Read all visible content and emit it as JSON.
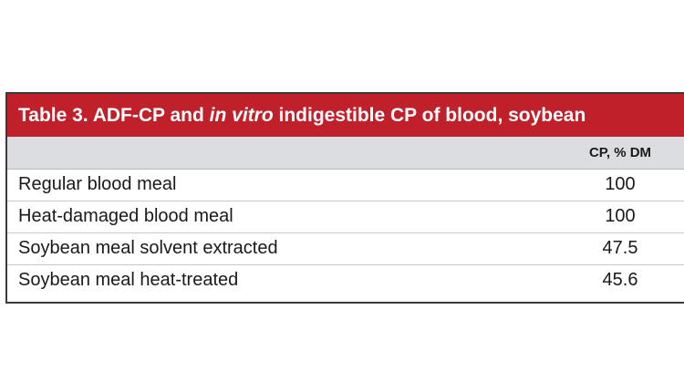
{
  "table": {
    "title_prefix": "Table 3. ADF-CP and ",
    "title_italic": "in vitro",
    "title_suffix": " indigestible CP of blood, soybean",
    "column_header": "CP, % DM",
    "rows": [
      {
        "label": "Regular blood meal",
        "value": "100"
      },
      {
        "label": "Heat-damaged blood meal",
        "value": "100"
      },
      {
        "label": "Soybean meal solvent extracted",
        "value": "47.5"
      },
      {
        "label": "Soybean meal heat-treated",
        "value": "45.6"
      }
    ]
  },
  "colors": {
    "title_bar": "#c0202a",
    "header_row": "#dcdde0",
    "border": "#3a3a3a"
  }
}
